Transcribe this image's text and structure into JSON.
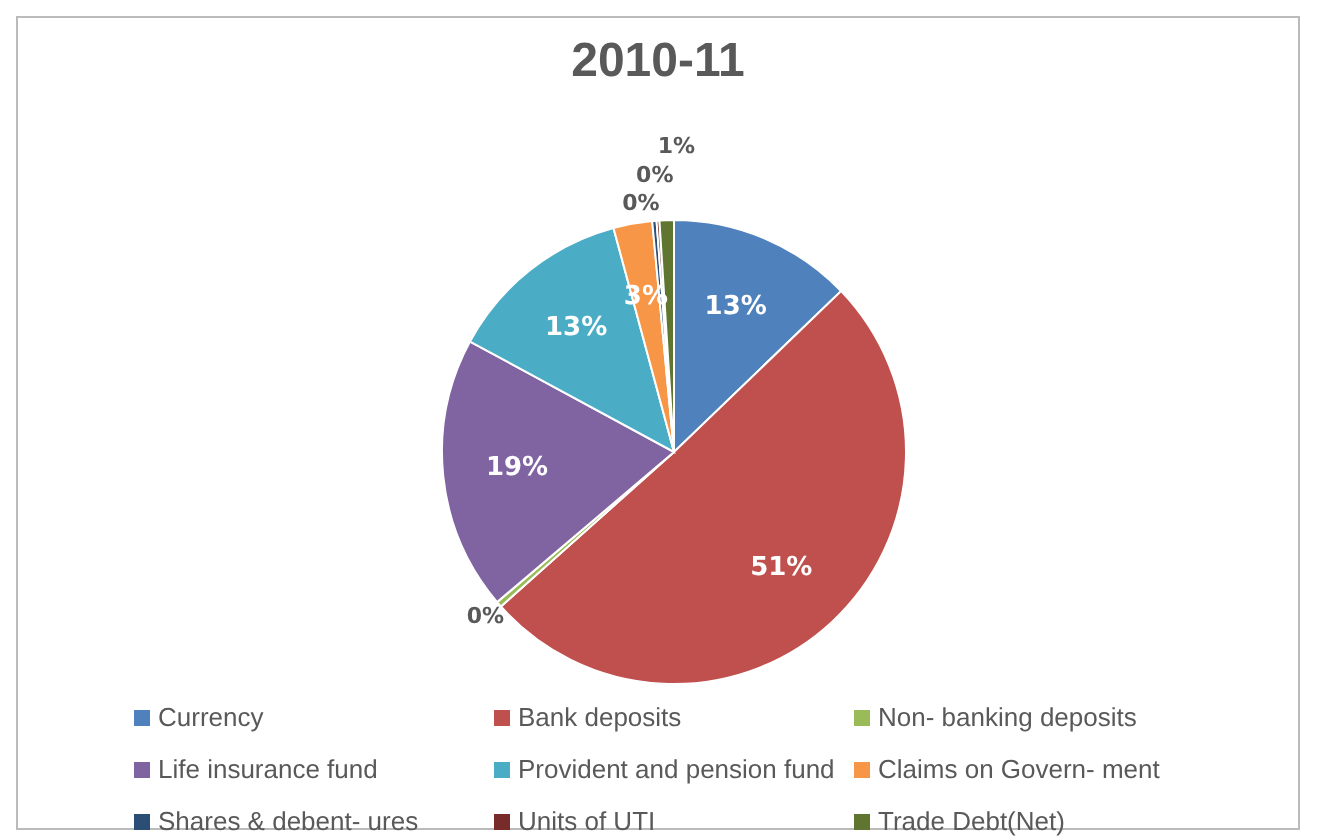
{
  "chart_data": {
    "type": "pie",
    "title": "2010-11",
    "categories": [
      "Currency",
      "Bank deposits",
      "Non- banking deposits",
      "Life insurance fund",
      "Provident and pension fund",
      "Claims on Govern- ment",
      "Shares & debent- ures",
      "Units of UTI",
      "Trade Debt(Net)"
    ],
    "values": [
      12.8,
      50.6,
      0.4,
      19.1,
      12.9,
      2.7,
      0.3,
      0.2,
      1.0
    ],
    "value_labels": [
      "13%",
      "51%",
      "0%",
      "19%",
      "13%",
      "3%",
      "0%",
      "0%",
      "1%"
    ],
    "colors": [
      "#4f81bd",
      "#c0504d",
      "#9bbb59",
      "#8064a2",
      "#4bacc6",
      "#f79646",
      "#2c4d75",
      "#772c2a",
      "#5f7530"
    ],
    "legend": "bottom"
  }
}
